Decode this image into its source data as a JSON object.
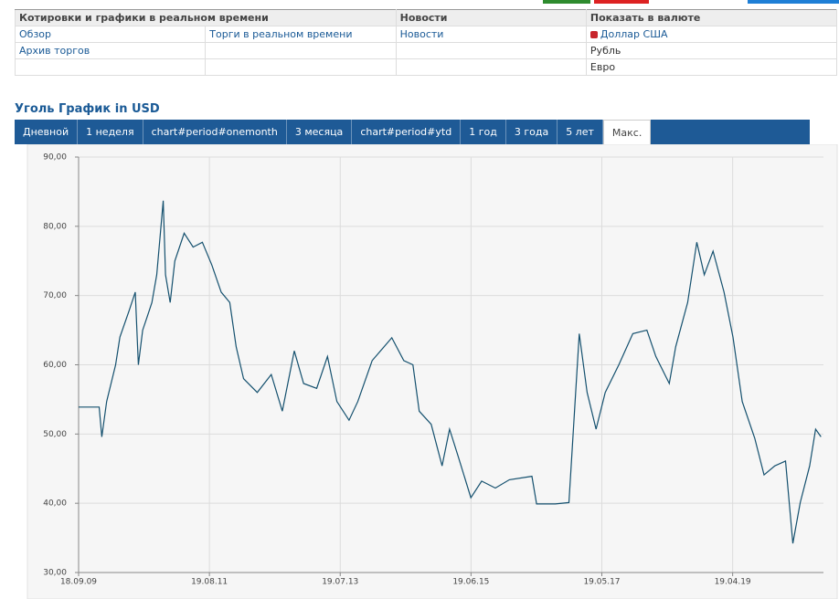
{
  "header_table": {
    "columns": [
      "Котировки и графики в реальном времени",
      "Новости",
      "Показать в валюте"
    ],
    "rows": [
      [
        "Обзор",
        "Торги в реальном времени",
        "Новости",
        "Доллар США"
      ],
      [
        "Архив торгов",
        null,
        null,
        "Рубль"
      ],
      [
        null,
        null,
        null,
        "Евро"
      ]
    ]
  },
  "tabs": [
    "Дневной",
    "1 неделя",
    "chart#period#onemonth",
    "3 месяца",
    "chart#period#ytd",
    "1 год",
    "3 года",
    "5 лет",
    "Макс."
  ],
  "selected_tab": 8,
  "chart_data": {
    "type": "line",
    "title": "Уголь График in USD",
    "color": "#14506e",
    "grid": true,
    "x": [
      "18.09.09",
      "06.01.10",
      "20.01.10",
      "15.02.10",
      "04.04.10",
      "27.04.10",
      "15.06.10",
      "18.07.10",
      "04.08.10",
      "27.08.10",
      "21.09.10",
      "15.10.10",
      "10.11.10",
      "15.12.10",
      "27.12.10",
      "21.01.11",
      "15.02.11",
      "06.04.11",
      "24.05.11",
      "12.07.11",
      "01.09.11",
      "21.10.11",
      "06.12.11",
      "09.01.12",
      "18.02.12",
      "01.05.12",
      "15.07.12",
      "12.09.12",
      "15.11.12",
      "04.01.13",
      "15.03.13",
      "12.05.13",
      "01.07.13",
      "04.09.13",
      "21.10.13",
      "06.01.14",
      "21.04.14",
      "24.06.14",
      "12.08.14",
      "15.09.14",
      "18.11.14",
      "15.01.15",
      "24.02.15",
      "12.04.15",
      "18.06.15",
      "15.08.15",
      "27.10.15",
      "10.01.16",
      "10.05.16",
      "04.06.16",
      "12.09.16",
      "24.11.16",
      "18.01.17",
      "01.03.17",
      "18.04.17",
      "06.06.17",
      "18.08.17",
      "01.11.17",
      "15.01.18",
      "04.03.18",
      "15.05.18",
      "18.06.18",
      "21.08.18",
      "09.10.18",
      "18.11.18",
      "04.01.19",
      "04.03.19",
      "21.04.19",
      "09.06.19",
      "15.08.19",
      "04.10.19",
      "01.12.19",
      "27.01.20",
      "06.03.20",
      "15.04.20",
      "04.06.20",
      "06.07.20",
      "04.08.20"
    ],
    "values": [
      53.9,
      53.9,
      49.6,
      54.7,
      60,
      64,
      67.8,
      70.5,
      60,
      65,
      67,
      69,
      73,
      83.7,
      73,
      69,
      75,
      79,
      77,
      77.7,
      74.4,
      70.5,
      69,
      62.6,
      58,
      56,
      58.6,
      53.3,
      62,
      57.3,
      56.6,
      61.2,
      54.7,
      52,
      54.7,
      60.6,
      63.9,
      60.6,
      60,
      53.3,
      51.4,
      45.4,
      50.7,
      46.7,
      40.8,
      43.2,
      42.2,
      43.4,
      43.9,
      39.9,
      39.9,
      40.1,
      64.5,
      56,
      50.7,
      56,
      60,
      64.5,
      65,
      61.2,
      57.3,
      62.6,
      69,
      77.7,
      73,
      76.4,
      70.5,
      64,
      54.7,
      49.4,
      44.1,
      45.4,
      46.1,
      34.2,
      40.1,
      45.4,
      50.7,
      49.6
    ],
    "xlim": [
      "18.09.09",
      "17.08.20"
    ],
    "xticks": [
      "18.09.09",
      "19.08.11",
      "19.07.13",
      "19.06.15",
      "19.05.17",
      "19.04.19"
    ],
    "ylim": [
      30,
      90
    ],
    "yticks": [
      {
        "value": 30,
        "label": "30,00"
      },
      {
        "value": 40,
        "label": "40,00"
      },
      {
        "value": 50,
        "label": "50,00"
      },
      {
        "value": 60,
        "label": "60,00"
      },
      {
        "value": 70,
        "label": "70,00"
      },
      {
        "value": 80,
        "label": "80,00"
      },
      {
        "value": 90,
        "label": "90,00"
      }
    ]
  }
}
